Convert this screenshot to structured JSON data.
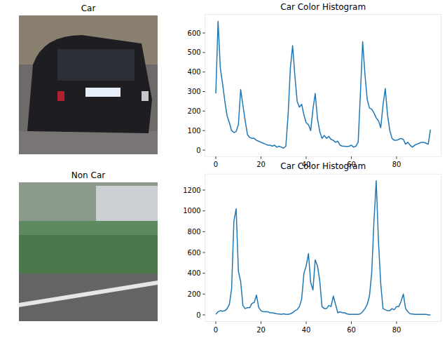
{
  "images": [
    {
      "title": "Car"
    },
    {
      "title": "Non Car"
    }
  ],
  "chart_data": [
    {
      "type": "line",
      "title": "Car Color Histogram",
      "color": "#1f77b4",
      "x": [
        0,
        1,
        2,
        3,
        4,
        5,
        6,
        7,
        8,
        9,
        10,
        11,
        12,
        13,
        14,
        15,
        16,
        17,
        18,
        19,
        20,
        21,
        22,
        23,
        24,
        25,
        26,
        27,
        28,
        29,
        30,
        31,
        32,
        33,
        34,
        35,
        36,
        37,
        38,
        39,
        40,
        41,
        42,
        43,
        44,
        45,
        46,
        47,
        48,
        49,
        50,
        51,
        52,
        53,
        54,
        55,
        56,
        57,
        58,
        59,
        60,
        61,
        62,
        63,
        64,
        65,
        66,
        67,
        68,
        69,
        70,
        71,
        72,
        73,
        74,
        75,
        76,
        77,
        78,
        79,
        80,
        81,
        82,
        83,
        84,
        85,
        86,
        87,
        88,
        89,
        90,
        91,
        92,
        93,
        94,
        95
      ],
      "values": [
        290,
        660,
        420,
        340,
        250,
        175,
        140,
        100,
        90,
        95,
        130,
        310,
        230,
        150,
        80,
        65,
        60,
        60,
        50,
        45,
        40,
        35,
        30,
        25,
        25,
        20,
        25,
        15,
        20,
        15,
        10,
        20,
        180,
        420,
        535,
        380,
        250,
        220,
        235,
        180,
        140,
        130,
        100,
        210,
        290,
        160,
        95,
        60,
        75,
        60,
        70,
        55,
        50,
        40,
        45,
        25,
        20,
        20,
        18,
        20,
        25,
        15,
        20,
        40,
        290,
        555,
        390,
        260,
        215,
        210,
        190,
        165,
        150,
        115,
        230,
        315,
        180,
        100,
        60,
        50,
        50,
        55,
        60,
        55,
        30,
        40,
        25,
        15,
        25,
        30,
        35,
        40,
        40,
        35,
        30,
        105
      ],
      "xlim": [
        -4.75,
        99.75
      ],
      "ylim": [
        -33,
        695
      ],
      "xticks": [
        0,
        20,
        40,
        60,
        80
      ],
      "yticks": [
        0,
        100,
        200,
        300,
        400,
        500,
        600
      ]
    },
    {
      "type": "line",
      "title": "Car Color Histogram",
      "color": "#1f77b4",
      "x": [
        0,
        1,
        2,
        3,
        4,
        5,
        6,
        7,
        8,
        9,
        10,
        11,
        12,
        13,
        14,
        15,
        16,
        17,
        18,
        19,
        20,
        21,
        22,
        23,
        24,
        25,
        26,
        27,
        28,
        29,
        30,
        31,
        32,
        33,
        34,
        35,
        36,
        37,
        38,
        39,
        40,
        41,
        42,
        43,
        44,
        45,
        46,
        47,
        48,
        49,
        50,
        51,
        52,
        53,
        54,
        55,
        56,
        57,
        58,
        59,
        60,
        61,
        62,
        63,
        64,
        65,
        66,
        67,
        68,
        69,
        70,
        71,
        72,
        73,
        74,
        75,
        76,
        77,
        78,
        79,
        80,
        81,
        82,
        83,
        84,
        85,
        86,
        87,
        88,
        89,
        90,
        91,
        92,
        93,
        94,
        95
      ],
      "values": [
        5,
        30,
        40,
        35,
        40,
        60,
        100,
        250,
        900,
        1020,
        420,
        320,
        90,
        60,
        70,
        70,
        110,
        120,
        190,
        70,
        40,
        30,
        30,
        30,
        20,
        20,
        15,
        10,
        8,
        5,
        10,
        5,
        5,
        10,
        20,
        40,
        50,
        80,
        150,
        400,
        470,
        590,
        310,
        240,
        530,
        470,
        330,
        80,
        60,
        60,
        90,
        80,
        180,
        100,
        20,
        30,
        20,
        20,
        10,
        5,
        5,
        5,
        5,
        5,
        10,
        30,
        60,
        100,
        180,
        400,
        900,
        1290,
        700,
        300,
        60,
        50,
        40,
        40,
        60,
        50,
        80,
        80,
        130,
        200,
        60,
        30,
        10,
        8,
        5,
        5,
        5,
        5,
        5,
        5,
        0,
        0
      ],
      "xlim": [
        -4.75,
        99.75
      ],
      "ylim": [
        -64,
        1354
      ],
      "xticks": [
        0,
        20,
        40,
        60,
        80
      ],
      "yticks": [
        0,
        200,
        400,
        600,
        800,
        1000,
        1200
      ]
    }
  ]
}
